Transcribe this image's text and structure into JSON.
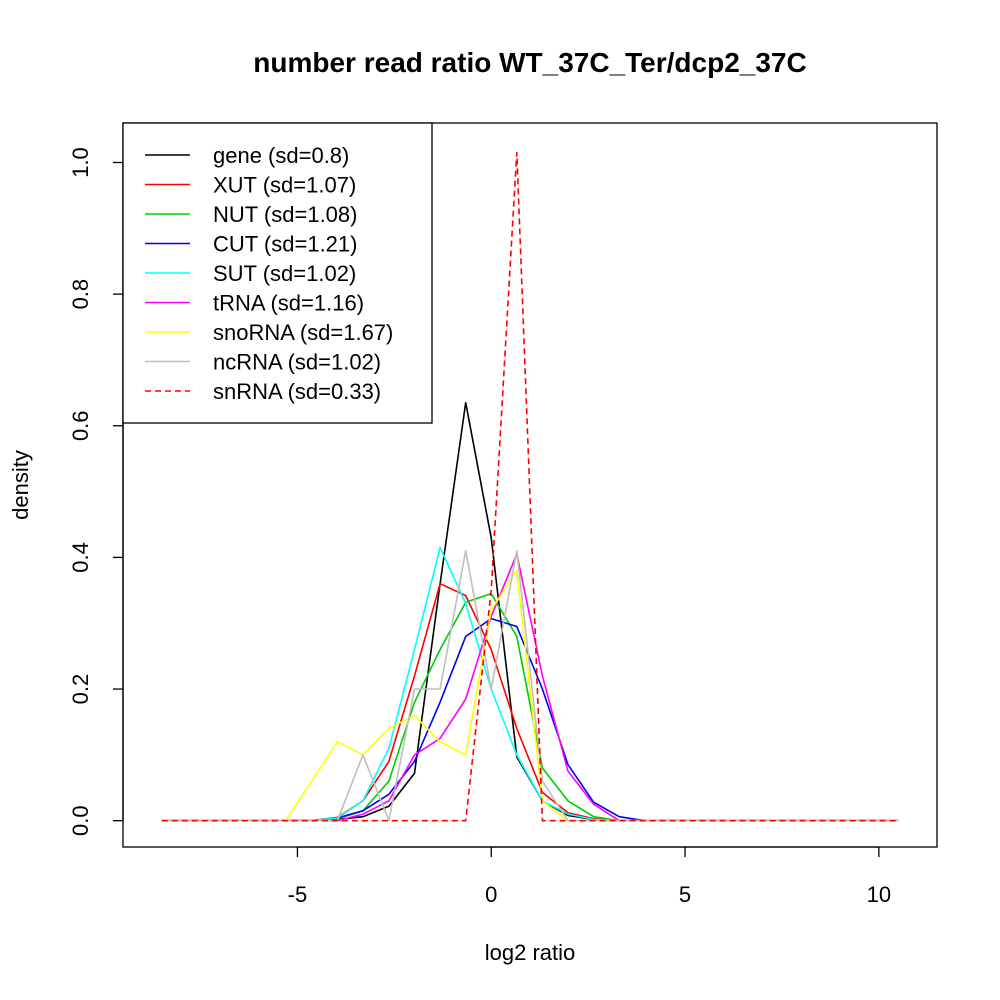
{
  "chart_data": {
    "type": "line",
    "title": "number read ratio WT_37C_Ter/dcp2_37C",
    "xlabel": "log2 ratio",
    "ylabel": "density",
    "xlim": [
      -9.5,
      11.5
    ],
    "ylim": [
      -0.04,
      1.06
    ],
    "xticks": [
      -5,
      0,
      5,
      10
    ],
    "xtick_labels": [
      "-5",
      "0",
      "5",
      "10"
    ],
    "yticks": [
      0.0,
      0.2,
      0.4,
      0.6,
      0.8,
      1.0
    ],
    "ytick_labels": [
      "0.0",
      "0.2",
      "0.4",
      "0.6",
      "0.8",
      "1.0"
    ],
    "legend_position": "top-left",
    "grid": false,
    "series": [
      {
        "name": "gene (sd=0.8)",
        "color": "#000000",
        "dash": "solid",
        "x": [
          -8.5,
          -4.65,
          -3.97,
          -3.31,
          -2.64,
          -1.98,
          -1.32,
          -0.66,
          0,
          0.66,
          1.32,
          1.98,
          2.64,
          3.3,
          10.5
        ],
        "y": [
          0,
          0,
          0.002,
          0.006,
          0.022,
          0.072,
          0.36,
          0.635,
          0.43,
          0.097,
          0.03,
          0.008,
          0.002,
          0,
          0
        ]
      },
      {
        "name": "XUT (sd=1.07)",
        "color": "#ff0000",
        "dash": "solid",
        "x": [
          -8.5,
          -4.65,
          -3.97,
          -3.31,
          -2.64,
          -1.98,
          -1.32,
          -0.66,
          0,
          0.66,
          1.32,
          1.98,
          2.64,
          3.3,
          10.5
        ],
        "y": [
          0,
          0,
          0.005,
          0.03,
          0.09,
          0.22,
          0.36,
          0.342,
          0.26,
          0.14,
          0.043,
          0.012,
          0.003,
          0,
          0
        ]
      },
      {
        "name": "NUT (sd=1.08)",
        "color": "#00cd00",
        "dash": "solid",
        "x": [
          -8.5,
          -4.65,
          -3.97,
          -3.31,
          -2.64,
          -1.98,
          -1.32,
          -0.66,
          0,
          0.66,
          1.32,
          1.98,
          2.64,
          3.3,
          10.5
        ],
        "y": [
          0,
          0,
          0.003,
          0.015,
          0.06,
          0.18,
          0.26,
          0.332,
          0.345,
          0.28,
          0.08,
          0.03,
          0.006,
          0,
          0
        ]
      },
      {
        "name": "CUT (sd=1.21)",
        "color": "#0000ff",
        "dash": "solid",
        "x": [
          -8.5,
          -4.65,
          -3.97,
          -3.31,
          -2.64,
          -1.98,
          -1.32,
          -0.66,
          0,
          0.66,
          1.32,
          1.98,
          2.64,
          3.3,
          3.97,
          10.5
        ],
        "y": [
          0,
          0,
          0.004,
          0.015,
          0.04,
          0.09,
          0.18,
          0.28,
          0.307,
          0.295,
          0.2,
          0.085,
          0.028,
          0.006,
          0,
          0
        ]
      },
      {
        "name": "SUT (sd=1.02)",
        "color": "#00ffff",
        "dash": "solid",
        "x": [
          -8.5,
          -4.65,
          -3.97,
          -3.31,
          -2.64,
          -1.98,
          -1.32,
          -0.66,
          0,
          0.66,
          1.32,
          1.98,
          2.64,
          3.3,
          10.5
        ],
        "y": [
          0,
          0,
          0.004,
          0.03,
          0.11,
          0.26,
          0.415,
          0.33,
          0.2,
          0.1,
          0.03,
          0.01,
          0.002,
          0,
          0
        ]
      },
      {
        "name": "tRNA (sd=1.16)",
        "color": "#ff00ff",
        "dash": "solid",
        "x": [
          -8.5,
          -4.65,
          -3.97,
          -3.31,
          -2.64,
          -1.98,
          -1.32,
          -0.66,
          0,
          0.66,
          1.32,
          1.98,
          2.64,
          3.3,
          10.5
        ],
        "y": [
          0,
          0,
          0,
          0.01,
          0.03,
          0.1,
          0.125,
          0.185,
          0.31,
          0.405,
          0.22,
          0.075,
          0.025,
          0,
          0
        ]
      },
      {
        "name": "snoRNA (sd=1.67)",
        "color": "#ffff00",
        "dash": "solid",
        "x": [
          -8.5,
          -5.3,
          -3.97,
          -3.31,
          -2.64,
          -1.98,
          -1.32,
          -0.66,
          0,
          0.66,
          1.32,
          1.98,
          10.5
        ],
        "y": [
          0,
          0,
          0.12,
          0.1,
          0.14,
          0.16,
          0.12,
          0.1,
          0.32,
          0.38,
          0.03,
          0,
          0
        ]
      },
      {
        "name": "ncRNA (sd=1.02)",
        "color": "#bebebe",
        "dash": "solid",
        "x": [
          -8.5,
          -3.97,
          -3.31,
          -2.64,
          -1.98,
          -1.32,
          -0.66,
          0,
          0.66,
          1.32,
          1.98,
          10.5
        ],
        "y": [
          0,
          0,
          0.1,
          0,
          0.2,
          0.2,
          0.41,
          0.2,
          0.41,
          0.06,
          0,
          0
        ]
      },
      {
        "name": "snRNA (sd=0.33)",
        "color": "#ff0000",
        "dash": "dashed",
        "x": [
          -8.5,
          -0.66,
          0,
          0.66,
          1.32,
          10.5
        ],
        "y": [
          0,
          0,
          0.35,
          1.015,
          0,
          0
        ]
      }
    ]
  }
}
